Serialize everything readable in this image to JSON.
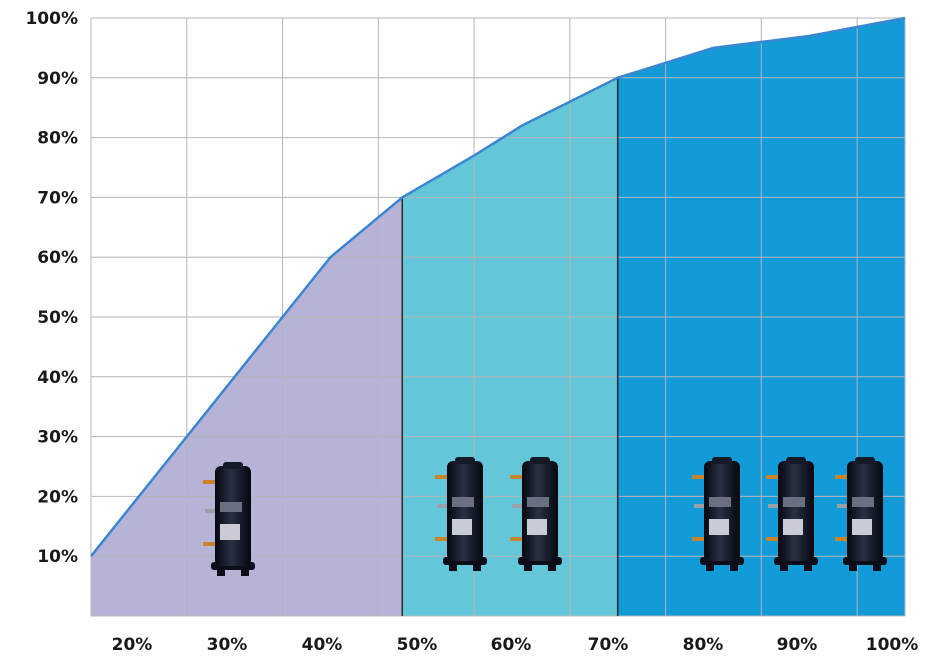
{
  "chart_data": {
    "type": "area",
    "title": "",
    "xlabel": "",
    "ylabel": "",
    "x_ticks": [
      "20%",
      "30%",
      "40%",
      "50%",
      "60%",
      "70%",
      "80%",
      "90%",
      "100%"
    ],
    "y_ticks": [
      "10%",
      "20%",
      "30%",
      "40%",
      "50%",
      "60%",
      "70%",
      "80%",
      "90%",
      "100%"
    ],
    "xlim": [
      15,
      100
    ],
    "ylim": [
      0,
      100
    ],
    "grid": true,
    "series": [
      {
        "x": [
          15,
          25,
          35,
          40,
          47.5,
          55,
          60,
          65,
          70,
          75,
          80,
          85,
          90,
          95,
          100
        ],
        "y": [
          10,
          30,
          50,
          60,
          70,
          77,
          82,
          86,
          90,
          92.5,
          95,
          96,
          97,
          98.5,
          100
        ]
      }
    ],
    "regions": [
      {
        "x_start": 15,
        "x_end": 47.5,
        "color": "#b7b3d6",
        "compressors": 1
      },
      {
        "x_start": 47.5,
        "x_end": 70,
        "color": "#63c7d9",
        "compressors": 2
      },
      {
        "x_start": 70,
        "x_end": 100,
        "color": "#139bd8",
        "compressors": 3
      }
    ],
    "line_color": "#3a86d0",
    "divider_color": "#2a2a2a",
    "grid_color": "#b4b4b4"
  }
}
